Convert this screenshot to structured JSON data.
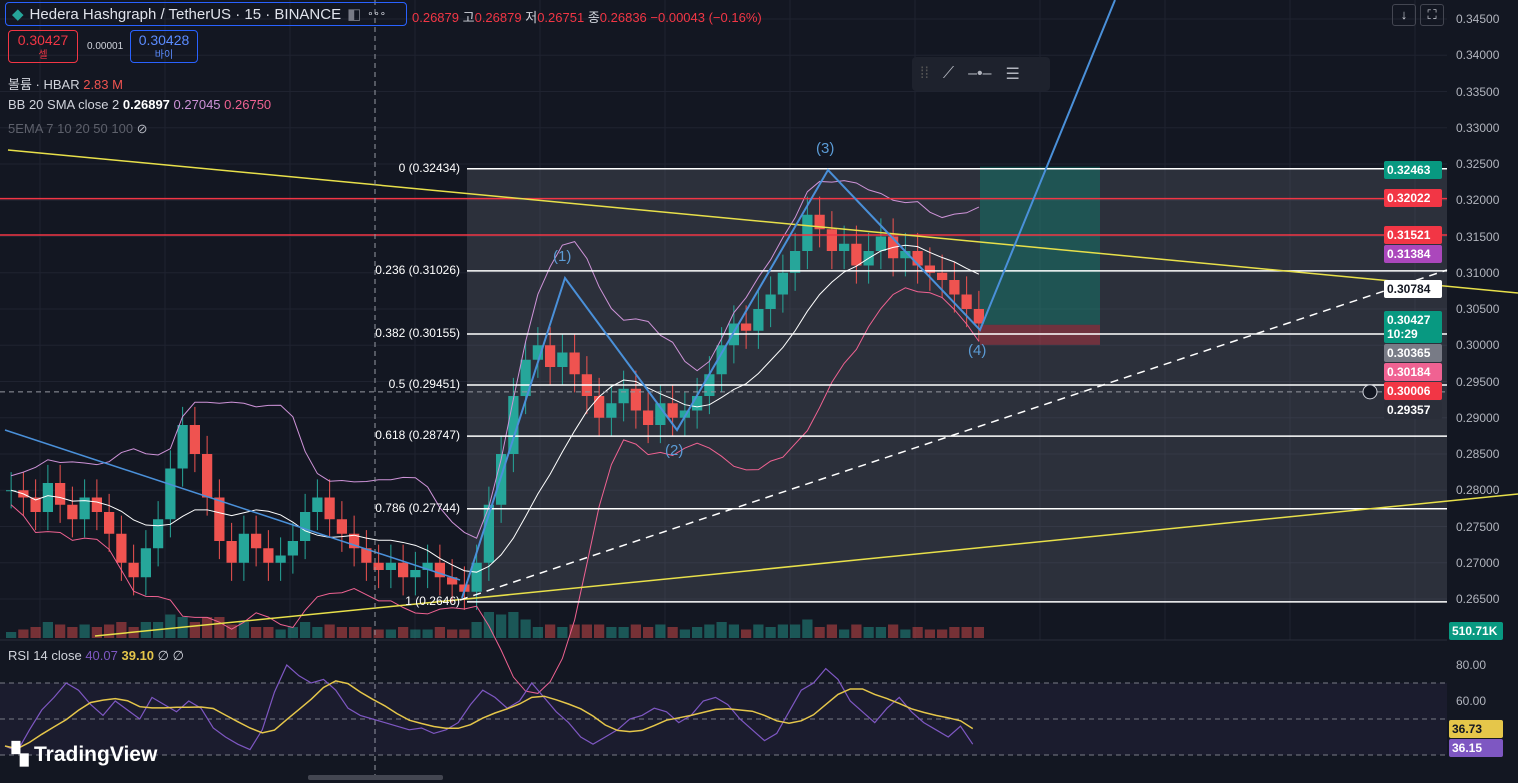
{
  "header": {
    "symbol": "Hedera Hashgraph / TetherUS · 15 · BINANCE",
    "more": "∘∘∘",
    "o_label": "",
    "open": "0.26879",
    "h_label": "고",
    "high": "0.26879",
    "l_label": "저",
    "low": "0.26751",
    "c_label": "종",
    "close": "0.26836",
    "change": "−0.00043 (−0.16%)"
  },
  "trade": {
    "sell_price": "0.30427",
    "sell_label": "셀",
    "spread": "0.00001",
    "buy_price": "0.30428",
    "buy_label": "바이"
  },
  "indicators": {
    "volume_label": "볼륨 · HBAR",
    "volume_value": "2.83 M",
    "bb_label": "BB 20 SMA close 2",
    "bb_basis": "0.26897",
    "bb_upper": "0.27045",
    "bb_lower": "0.26750",
    "ema_label": "5EMA 7 10 20 50 100",
    "ema_hidden": "⊘",
    "rsi_label": "RSI 14 close",
    "rsi_value": "40.07",
    "rsi_ma": "39.10",
    "rsi_extra": "∅ ∅"
  },
  "top_buttons": {
    "down": "↓",
    "fullscreen": "⛶"
  },
  "brand": "TradingView",
  "colors": {
    "bg": "#131722",
    "up": "#26a69a",
    "down": "#ef5350",
    "fib": "#ffffff",
    "wave": "#4a90d9",
    "trend": "#e8e04a",
    "resistance": "#f23645",
    "rsi": "#7e57c2",
    "rsi_ma": "#e5c64a"
  },
  "chart_data": {
    "type": "candlestick",
    "title": "Hedera Hashgraph / TetherUS · 15 · BINANCE",
    "ylim": [
      0.265,
      0.345
    ],
    "y_ticks": [
      "0.34500",
      "0.34000",
      "0.33500",
      "0.33000",
      "0.32500",
      "0.32000",
      "0.31500",
      "0.31000",
      "0.30500",
      "0.30000",
      "0.29500",
      "0.29000",
      "0.28500",
      "0.28000",
      "0.27500",
      "0.27000",
      "0.26500"
    ],
    "closes": [
      0.28,
      0.279,
      0.277,
      0.281,
      0.278,
      0.276,
      0.279,
      0.277,
      0.274,
      0.27,
      0.268,
      0.272,
      0.276,
      0.283,
      0.289,
      0.285,
      0.279,
      0.273,
      0.27,
      0.274,
      0.272,
      0.27,
      0.271,
      0.273,
      0.277,
      0.279,
      0.276,
      0.274,
      0.272,
      0.27,
      0.269,
      0.27,
      0.268,
      0.269,
      0.27,
      0.268,
      0.267,
      0.266,
      0.27,
      0.278,
      0.285,
      0.293,
      0.298,
      0.3,
      0.297,
      0.299,
      0.296,
      0.293,
      0.29,
      0.292,
      0.294,
      0.291,
      0.289,
      0.292,
      0.29,
      0.291,
      0.293,
      0.296,
      0.3,
      0.303,
      0.302,
      0.305,
      0.307,
      0.31,
      0.313,
      0.318,
      0.316,
      0.313,
      0.314,
      0.311,
      0.313,
      0.315,
      0.312,
      0.313,
      0.311,
      0.31,
      0.309,
      0.307,
      0.305,
      0.303
    ],
    "fib_levels": [
      {
        "ratio": "0",
        "price": 0.32434,
        "label": "0 (0.32434)"
      },
      {
        "ratio": "0.236",
        "price": 0.31026,
        "label": "0.236 (0.31026)"
      },
      {
        "ratio": "0.382",
        "price": 0.30155,
        "label": "0.382 (0.30155)"
      },
      {
        "ratio": "0.5",
        "price": 0.29451,
        "label": "0.5 (0.29451)"
      },
      {
        "ratio": "0.618",
        "price": 0.28747,
        "label": "0.618 (0.28747)"
      },
      {
        "ratio": "0.786",
        "price": 0.27744,
        "label": "0.786 (0.27744)"
      },
      {
        "ratio": "1",
        "price": 0.2646,
        "label": "1 (0.2646)"
      }
    ],
    "resistance_levels": [
      0.32022,
      0.31521
    ],
    "waves": [
      {
        "label": "(1)",
        "price": 0.3098
      },
      {
        "label": "(2)",
        "price": 0.288
      },
      {
        "label": "(3)",
        "price": 0.3245
      },
      {
        "label": "(4)",
        "price": 0.3022
      }
    ],
    "position": {
      "entry": 0.30365,
      "target": 0.32463,
      "stop": 0.30006
    },
    "price_badges": [
      {
        "value": "0.32463",
        "color": "#089981"
      },
      {
        "value": "0.32022",
        "color": "#f23645"
      },
      {
        "value": "0.31521",
        "color": "#f23645"
      },
      {
        "value": "0.31384",
        "color": "#ab47bc"
      },
      {
        "value": "0.30784",
        "color": "#ffffff"
      },
      {
        "value": "0.30427",
        "sub": "10:29",
        "color": "#089981"
      },
      {
        "value": "0.30365",
        "color": "#787b86"
      },
      {
        "value": "0.30184",
        "color": "#f06292"
      },
      {
        "value": "0.30006",
        "color": "#f23645"
      },
      {
        "value": "0.29357",
        "color": "#2a2e39"
      }
    ],
    "volume_badge": "510.71K",
    "rsi_ticks": [
      "80.00",
      "60.00"
    ],
    "rsi_badges": [
      {
        "value": "36.73",
        "color": "#e5c64a"
      },
      {
        "value": "36.15",
        "color": "#7e57c2"
      }
    ],
    "rsi": [
      35,
      32,
      44,
      55,
      62,
      70,
      66,
      58,
      52,
      60,
      55,
      50,
      62,
      58,
      54,
      60,
      56,
      45,
      40,
      36,
      33,
      44,
      65,
      80,
      74,
      70,
      72,
      66,
      56,
      52,
      50,
      48,
      46,
      44,
      45,
      42,
      44,
      48,
      58,
      66,
      62,
      56,
      60,
      70,
      62,
      54,
      48,
      40,
      36,
      40,
      44,
      50,
      52,
      56,
      54,
      48,
      52,
      60,
      62,
      58,
      50,
      44,
      38,
      42,
      54,
      66,
      70,
      78,
      72,
      60,
      54,
      48,
      56,
      62,
      54,
      48,
      44,
      40,
      46,
      36
    ]
  }
}
